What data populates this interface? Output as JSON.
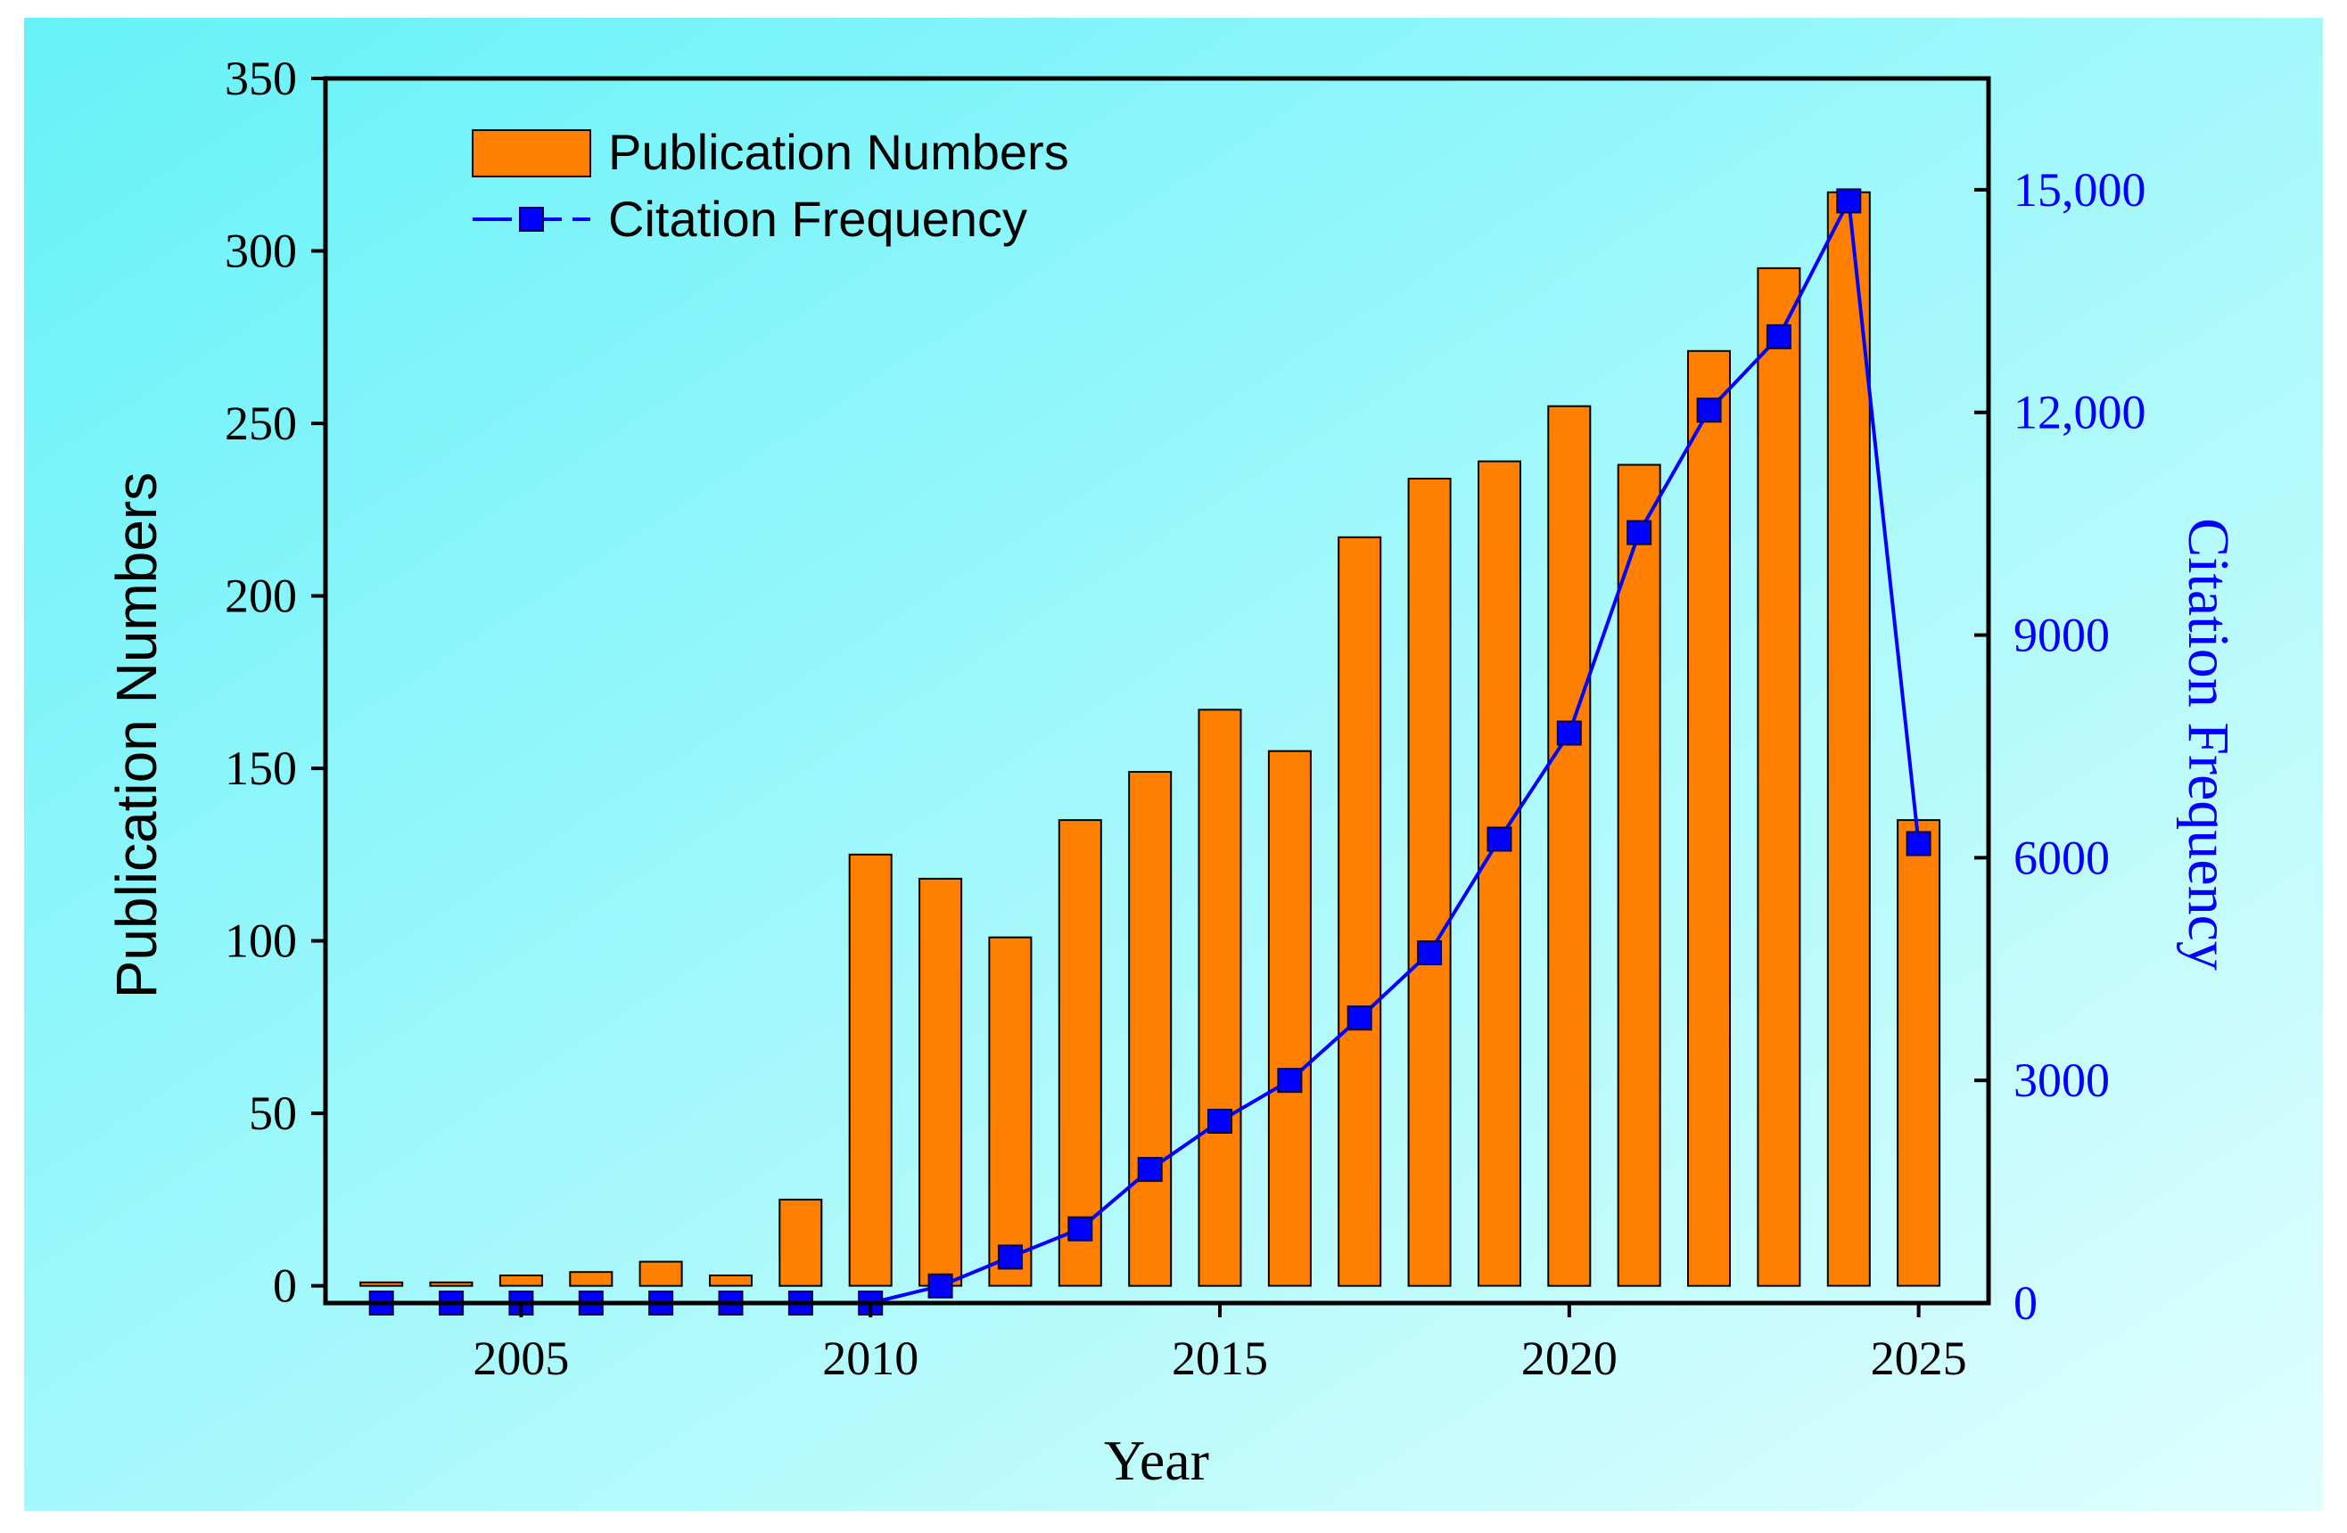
{
  "chart_data": {
    "type": "bar",
    "x": [
      2003,
      2004,
      2005,
      2006,
      2007,
      2008,
      2009,
      2010,
      2011,
      2012,
      2013,
      2014,
      2015,
      2016,
      2017,
      2018,
      2019,
      2020,
      2021,
      2022,
      2023,
      2024,
      2025
    ],
    "x_ticks": [
      "2005",
      "2010",
      "2015",
      "2020",
      "2025"
    ],
    "xlabel": "Year",
    "xlim": [
      2002.2,
      2026.0
    ],
    "series": [
      {
        "name": "Publication Numbers",
        "kind": "bar",
        "axis": "left",
        "color": "#FF8000",
        "values": [
          1,
          1,
          3,
          4,
          7,
          3,
          25,
          125,
          118,
          101,
          135,
          149,
          167,
          155,
          217,
          234,
          239,
          255,
          238,
          271,
          295,
          317,
          135
        ]
      },
      {
        "name": "Citation Frequency",
        "kind": "line",
        "axis": "right",
        "color": "#0000FF",
        "values": [
          0,
          0,
          0,
          0,
          0,
          0,
          0,
          0,
          230,
          620,
          1000,
          1800,
          2450,
          3000,
          3840,
          4720,
          6250,
          7680,
          10380,
          12030,
          13020,
          14850,
          6190
        ]
      }
    ],
    "left_axis": {
      "label": "Publication Numbers",
      "ylim": [
        -5,
        350
      ],
      "ticks": [
        0,
        50,
        100,
        150,
        200,
        250,
        300,
        350
      ],
      "tick_labels": [
        "0",
        "50",
        "100",
        "150",
        "200",
        "250",
        "300",
        "350"
      ]
    },
    "right_axis": {
      "label": "Citation Frequency",
      "color": "#0000FF",
      "ylim": [
        0,
        16500
      ],
      "ticks": [
        0,
        3000,
        6000,
        9000,
        12000,
        15000
      ],
      "tick_labels": [
        "0",
        "3000",
        "6000",
        "9000",
        "12,000",
        "15,000"
      ]
    },
    "legend": {
      "position": "top-left",
      "entries": [
        "Publication Numbers",
        "Citation Frequency"
      ]
    },
    "background": {
      "gradient_from": "#66F2F8",
      "gradient_to": "#E0FEFE"
    }
  }
}
